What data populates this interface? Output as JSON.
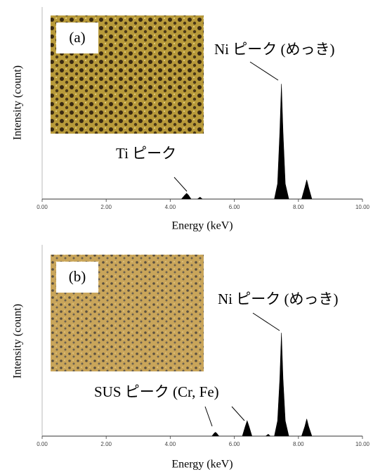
{
  "chart_data": [
    {
      "type": "area",
      "panel_label": "(a)",
      "x_label": "Energy (keV)",
      "y_label": "Intensity (count)",
      "annotations": [
        "Ni ピーク (めっき)",
        "Ti ピーク"
      ],
      "color": "#000000",
      "x": [
        0,
        4.35,
        4.45,
        4.51,
        4.57,
        4.65,
        4.85,
        4.93,
        5.0,
        7.25,
        7.35,
        7.42,
        7.47,
        7.52,
        7.59,
        7.7,
        8.1,
        8.2,
        8.26,
        8.32,
        8.42,
        10
      ],
      "values": [
        0,
        0,
        2,
        3,
        2,
        0,
        0,
        1,
        0,
        0,
        8,
        35,
        60,
        35,
        8,
        0,
        0,
        6,
        10,
        6,
        0,
        0
      ],
      "xlim": [
        0,
        10
      ],
      "ylim": [
        0,
        100
      ],
      "xticks": [
        {
          "value": 0,
          "label": "0.00"
        },
        {
          "value": 2,
          "label": "2.00"
        },
        {
          "value": 4,
          "label": "4.00"
        },
        {
          "value": 6,
          "label": "6.00"
        },
        {
          "value": 8,
          "label": "8.00"
        },
        {
          "value": 10,
          "label": "10.00"
        }
      ]
    },
    {
      "type": "area",
      "panel_label": "(b)",
      "x_label": "Energy (keV)",
      "y_label": "Intensity (count)",
      "annotations": [
        "Ni ピーク (めっき)",
        "SUS ピーク (Cr, Fe)"
      ],
      "color": "#000000",
      "x": [
        0,
        5.3,
        5.37,
        5.41,
        5.45,
        5.52,
        6.25,
        6.34,
        6.4,
        6.46,
        6.55,
        6.98,
        7.06,
        7.12,
        7.25,
        7.35,
        7.42,
        7.47,
        7.52,
        7.59,
        7.7,
        8.1,
        8.2,
        8.26,
        8.32,
        8.42,
        10
      ],
      "values": [
        0,
        0,
        1.5,
        2,
        1.5,
        0,
        0,
        5,
        8,
        5,
        0,
        0,
        1,
        0,
        0,
        8,
        30,
        54,
        30,
        8,
        0,
        0,
        5,
        9,
        5,
        0,
        0
      ],
      "xlim": [
        0,
        10
      ],
      "ylim": [
        0,
        100
      ],
      "xticks": [
        {
          "value": 0,
          "label": "0.00"
        },
        {
          "value": 2,
          "label": "2.00"
        },
        {
          "value": 4,
          "label": "4.00"
        },
        {
          "value": 6,
          "label": "6.00"
        },
        {
          "value": 8,
          "label": "8.00"
        },
        {
          "value": 10,
          "label": "10.00"
        }
      ]
    }
  ]
}
